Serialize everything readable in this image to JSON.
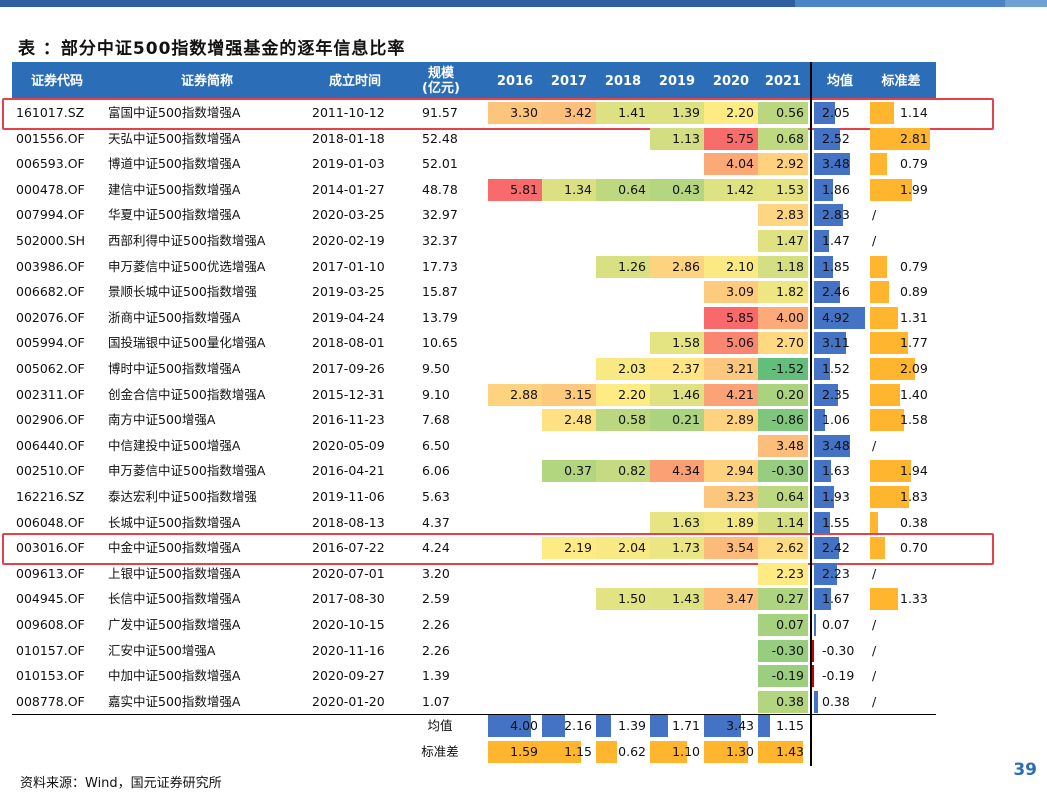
{
  "title": "表 ：部分中证500指数增强基金的逐年信息比率",
  "headers": {
    "code": "证券代码",
    "name": "证券简称",
    "date": "成立时间",
    "size": "规模\n(亿元)",
    "years": [
      "2016",
      "2017",
      "2018",
      "2019",
      "2020",
      "2021"
    ],
    "mean": "均值",
    "std": "标准差"
  },
  "rows": [
    {
      "code": "161017.SZ",
      "name": "富国中证500指数增强A",
      "date": "2011-10-12",
      "size": "91.57",
      "vals": [
        "3.30",
        "3.42",
        "1.41",
        "1.39",
        "2.20",
        "0.56"
      ],
      "mean": "2.05",
      "std": "1.14",
      "highlight": true
    },
    {
      "code": "001556.OF",
      "name": "天弘中证500指数增强A",
      "date": "2018-01-18",
      "size": "52.48",
      "vals": [
        "",
        "",
        "",
        "1.13",
        "5.75",
        "0.68"
      ],
      "mean": "2.52",
      "std": "2.81"
    },
    {
      "code": "006593.OF",
      "name": "博道中证500指数增强A",
      "date": "2019-01-03",
      "size": "52.01",
      "vals": [
        "",
        "",
        "",
        "",
        "4.04",
        "2.92"
      ],
      "mean": "3.48",
      "std": "0.79"
    },
    {
      "code": "000478.OF",
      "name": "建信中证500指数增强A",
      "date": "2014-01-27",
      "size": "48.78",
      "vals": [
        "5.81",
        "1.34",
        "0.64",
        "0.43",
        "1.42",
        "1.53"
      ],
      "mean": "1.86",
      "std": "1.99"
    },
    {
      "code": "007994.OF",
      "name": "华夏中证500指数增强A",
      "date": "2020-03-25",
      "size": "32.97",
      "vals": [
        "",
        "",
        "",
        "",
        "",
        "2.83"
      ],
      "mean": "2.83",
      "std": "/"
    },
    {
      "code": "502000.SH",
      "name": "西部利得中证500指数增强A",
      "date": "2020-02-19",
      "size": "32.37",
      "vals": [
        "",
        "",
        "",
        "",
        "",
        "1.47"
      ],
      "mean": "1.47",
      "std": "/"
    },
    {
      "code": "003986.OF",
      "name": "申万菱信中证500优选增强A",
      "date": "2017-01-10",
      "size": "17.73",
      "vals": [
        "",
        "",
        "1.26",
        "2.86",
        "2.10",
        "1.18"
      ],
      "mean": "1.85",
      "std": "0.79"
    },
    {
      "code": "006682.OF",
      "name": "景顺长城中证500指数增强",
      "date": "2019-03-25",
      "size": "15.87",
      "vals": [
        "",
        "",
        "",
        "",
        "3.09",
        "1.82"
      ],
      "mean": "2.46",
      "std": "0.89"
    },
    {
      "code": "002076.OF",
      "name": "浙商中证500指数增强A",
      "date": "2019-04-24",
      "size": "13.79",
      "vals": [
        "",
        "",
        "",
        "",
        "5.85",
        "4.00"
      ],
      "mean": "4.92",
      "std": "1.31"
    },
    {
      "code": "005994.OF",
      "name": "国投瑞银中证500量化增强A",
      "date": "2018-08-01",
      "size": "10.65",
      "vals": [
        "",
        "",
        "",
        "1.58",
        "5.06",
        "2.70"
      ],
      "mean": "3.11",
      "std": "1.77"
    },
    {
      "code": "005062.OF",
      "name": "博时中证500指数增强A",
      "date": "2017-09-26",
      "size": "9.50",
      "vals": [
        "",
        "",
        "2.03",
        "2.37",
        "3.21",
        "-1.52"
      ],
      "mean": "1.52",
      "std": "2.09"
    },
    {
      "code": "002311.OF",
      "name": "创金合信中证500指数增强A",
      "date": "2015-12-31",
      "size": "9.10",
      "vals": [
        "2.88",
        "3.15",
        "2.20",
        "1.46",
        "4.21",
        "0.20"
      ],
      "mean": "2.35",
      "std": "1.40"
    },
    {
      "code": "002906.OF",
      "name": "南方中证500增强A",
      "date": "2016-11-23",
      "size": "7.68",
      "vals": [
        "",
        "2.48",
        "0.58",
        "0.21",
        "2.89",
        "-0.86"
      ],
      "mean": "1.06",
      "std": "1.58"
    },
    {
      "code": "006440.OF",
      "name": "中信建投中证500增强A",
      "date": "2020-05-09",
      "size": "6.50",
      "vals": [
        "",
        "",
        "",
        "",
        "",
        "3.48"
      ],
      "mean": "3.48",
      "std": "/"
    },
    {
      "code": "002510.OF",
      "name": "申万菱信中证500指数增强A",
      "date": "2016-04-21",
      "size": "6.06",
      "vals": [
        "",
        "0.37",
        "0.82",
        "4.34",
        "2.94",
        "-0.30"
      ],
      "mean": "1.63",
      "std": "1.94"
    },
    {
      "code": "162216.SZ",
      "name": "泰达宏利中证500指数增强",
      "date": "2019-11-06",
      "size": "5.63",
      "vals": [
        "",
        "",
        "",
        "",
        "3.23",
        "0.64"
      ],
      "mean": "1.93",
      "std": "1.83"
    },
    {
      "code": "006048.OF",
      "name": "长城中证500指数增强A",
      "date": "2018-08-13",
      "size": "4.37",
      "vals": [
        "",
        "",
        "",
        "1.63",
        "1.89",
        "1.14"
      ],
      "mean": "1.55",
      "std": "0.38"
    },
    {
      "code": "003016.OF",
      "name": "中金中证500指数增强A",
      "date": "2016-07-22",
      "size": "4.24",
      "vals": [
        "",
        "2.19",
        "2.04",
        "1.73",
        "3.54",
        "2.62"
      ],
      "mean": "2.42",
      "std": "0.70",
      "highlight": true
    },
    {
      "code": "009613.OF",
      "name": "上银中证500指数增强A",
      "date": "2020-07-01",
      "size": "3.20",
      "vals": [
        "",
        "",
        "",
        "",
        "",
        "2.23"
      ],
      "mean": "2.23",
      "std": "/"
    },
    {
      "code": "004945.OF",
      "name": "长信中证500指数增强A",
      "date": "2017-08-30",
      "size": "2.59",
      "vals": [
        "",
        "",
        "1.50",
        "1.43",
        "3.47",
        "0.27"
      ],
      "mean": "1.67",
      "std": "1.33"
    },
    {
      "code": "009608.OF",
      "name": "广发中证500指数增强A",
      "date": "2020-10-15",
      "size": "2.26",
      "vals": [
        "",
        "",
        "",
        "",
        "",
        "0.07"
      ],
      "mean": "0.07",
      "std": "/"
    },
    {
      "code": "010157.OF",
      "name": "汇安中证500增强A",
      "date": "2020-11-16",
      "size": "2.26",
      "vals": [
        "",
        "",
        "",
        "",
        "",
        "-0.30"
      ],
      "mean": "-0.30",
      "std": "/"
    },
    {
      "code": "010153.OF",
      "name": "中加中证500指数增强A",
      "date": "2020-09-27",
      "size": "1.39",
      "vals": [
        "",
        "",
        "",
        "",
        "",
        "-0.19"
      ],
      "mean": "-0.19",
      "std": "/"
    },
    {
      "code": "008778.OF",
      "name": "嘉实中证500指数增强A",
      "date": "2020-01-20",
      "size": "1.07",
      "vals": [
        "",
        "",
        "",
        "",
        "",
        "0.38"
      ],
      "mean": "0.38",
      "std": "/"
    }
  ],
  "footer": {
    "mean_label": "均值",
    "std_label": "标准差",
    "mean_vals": [
      "4.00",
      "2.16",
      "1.39",
      "1.71",
      "3.43",
      "1.15"
    ],
    "std_vals": [
      "1.59",
      "1.15",
      "0.62",
      "1.10",
      "1.30",
      "1.43"
    ]
  },
  "colors": {
    "header_bg": "#2c6db7",
    "highlight_border": "#e8404a",
    "mean_bar": "#4472c4",
    "std_bar": "#ffb52e"
  },
  "source": "资料来源：Wind，国元证券研究所",
  "page_number": "39"
}
